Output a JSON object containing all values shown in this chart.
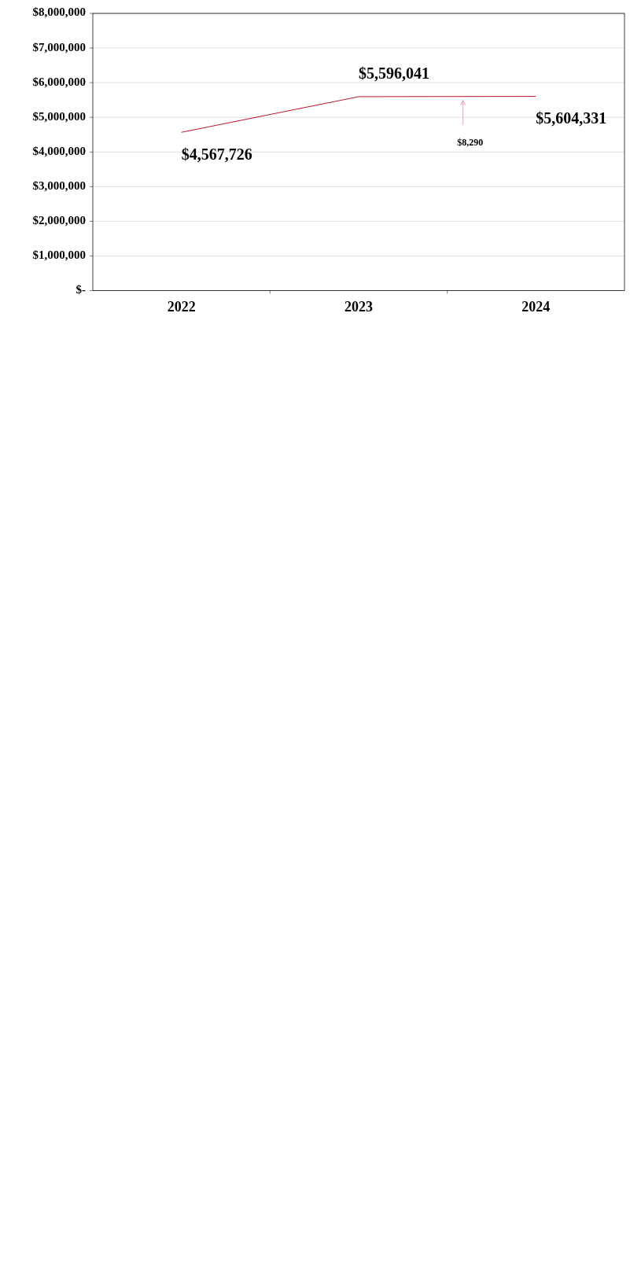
{
  "chart_data": {
    "type": "line",
    "categories": [
      "2022",
      "2023",
      "2024"
    ],
    "series": [
      {
        "color": "#c0142a",
        "values": [
          4567726,
          5596041,
          5604331
        ],
        "value_labels": [
          "$4,567,726",
          "$5,596,041",
          "$5,604,331"
        ]
      }
    ],
    "ylim": [
      0,
      8000000
    ],
    "yticks": [
      {
        "value": 0,
        "label": "$-"
      },
      {
        "value": 1000000,
        "label": "$1,000,000"
      },
      {
        "value": 2000000,
        "label": "$2,000,000"
      },
      {
        "value": 3000000,
        "label": "$3,000,000"
      },
      {
        "value": 4000000,
        "label": "$4,000,000"
      },
      {
        "value": 5000000,
        "label": "$5,000,000"
      },
      {
        "value": 6000000,
        "label": "$6,000,000"
      },
      {
        "value": 7000000,
        "label": "$7,000,000"
      },
      {
        "value": 8000000,
        "label": "$8,000,000"
      }
    ],
    "grid": "y",
    "marker": "none",
    "annotations": [
      "$8,290"
    ]
  }
}
